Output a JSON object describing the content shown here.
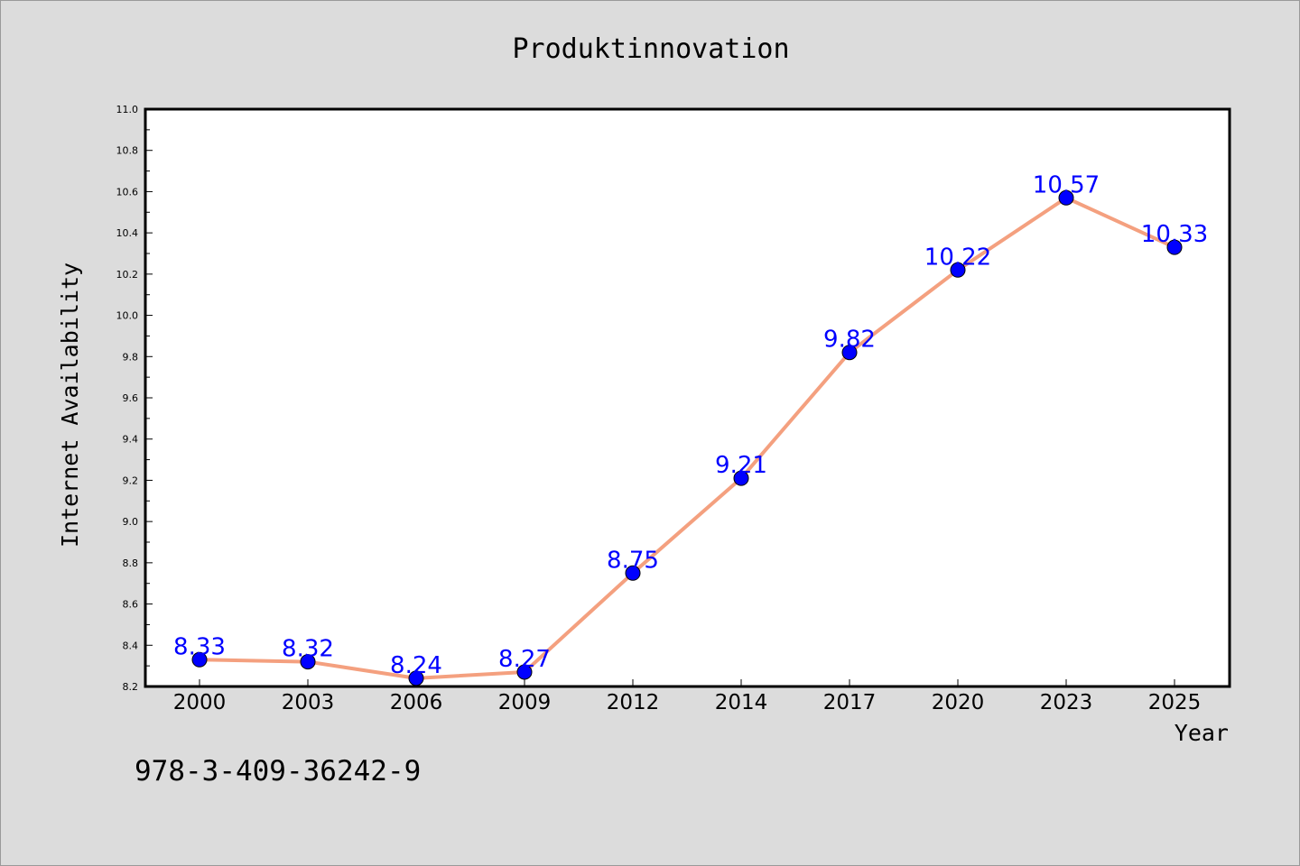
{
  "chart_data": {
    "type": "line",
    "title": "Produktinnovation",
    "xlabel": "Year",
    "ylabel": "Internet Availability",
    "categories": [
      "2000",
      "2003",
      "2006",
      "2009",
      "2012",
      "2014",
      "2017",
      "2020",
      "2023",
      "2025"
    ],
    "series": [
      {
        "values": [
          8.33,
          8.32,
          8.24,
          8.27,
          8.75,
          9.21,
          9.82,
          10.22,
          10.57,
          10.33
        ],
        "line_color": "#f4a07f",
        "marker_color": "#0000ff",
        "data_labels": [
          "8.33",
          "8.32",
          "8.24",
          "8.27",
          "8.75",
          "9.21",
          "9.82",
          "10.22",
          "10.57",
          "10.33"
        ]
      }
    ],
    "ylim": [
      8.2,
      11.0
    ],
    "y_ticks": [
      "8.2",
      "8.4",
      "8.6",
      "8.8",
      "9.0",
      "9.2",
      "9.4",
      "9.6",
      "9.8",
      "10.0",
      "10.2",
      "10.4",
      "10.6",
      "10.8",
      "11.0"
    ],
    "grid": false,
    "legend": "none",
    "label_color": "#0000ff",
    "plot_background": "#ffffff",
    "page_background": "#dcdcdc"
  },
  "footer": {
    "text": "978-3-409-36242-9"
  }
}
